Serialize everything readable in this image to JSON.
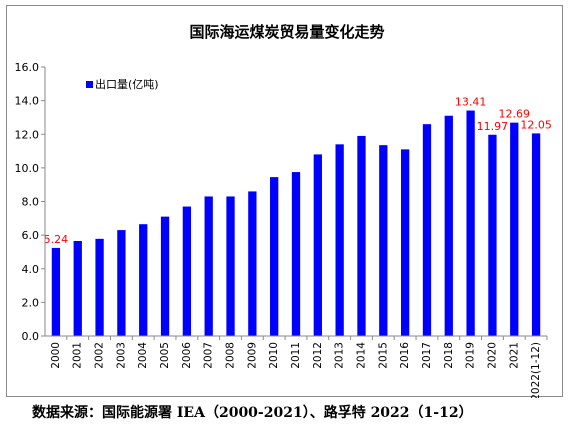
{
  "source_note": "数据来源：国际能源署 IEA（2000-2021）、路孚特 2022（1-12）",
  "colors": {
    "bar": "#0000ff",
    "data_label": "#ff0000",
    "axis": "#8a8a8a",
    "text": "#000000"
  },
  "chart_data": {
    "type": "bar",
    "title": "国际海运煤炭贸易量变化走势",
    "legend_position": "top-left",
    "xlabel": "",
    "ylabel": "",
    "ylim": [
      0,
      16
    ],
    "yticks": [
      "0.0",
      "2.0",
      "4.0",
      "6.0",
      "8.0",
      "10.0",
      "12.0",
      "14.0",
      "16.0"
    ],
    "grid": false,
    "categories": [
      "2000",
      "2001",
      "2002",
      "2003",
      "2004",
      "2005",
      "2006",
      "2007",
      "2008",
      "2009",
      "2010",
      "2011",
      "2012",
      "2013",
      "2014",
      "2015",
      "2016",
      "2017",
      "2018",
      "2019",
      "2020",
      "2021",
      "2022(1-12)"
    ],
    "series": [
      {
        "name": "出口量(亿吨)",
        "values": [
          5.24,
          5.65,
          5.78,
          6.3,
          6.65,
          7.1,
          7.7,
          8.3,
          8.3,
          8.6,
          9.45,
          9.75,
          10.8,
          11.4,
          11.9,
          11.35,
          11.1,
          12.6,
          13.1,
          13.41,
          11.97,
          12.69,
          12.05
        ]
      }
    ],
    "data_labels": [
      {
        "category": "2000",
        "text": "5.24"
      },
      {
        "category": "2019",
        "text": "13.41"
      },
      {
        "category": "2020",
        "text": "11.97"
      },
      {
        "category": "2021",
        "text": "12.69"
      },
      {
        "category": "2022(1-12)",
        "text": "12.05"
      }
    ]
  }
}
